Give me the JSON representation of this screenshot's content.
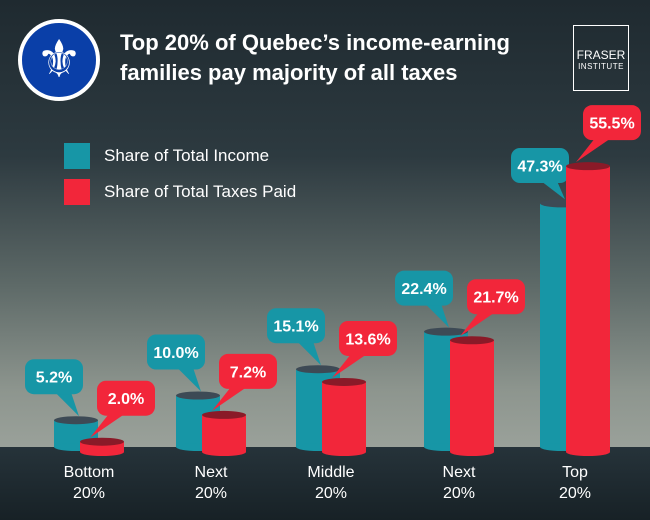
{
  "header": {
    "title": "Top 20% of Quebec’s income-earning families pay majority of all taxes",
    "logo_icon": "fleur-de-lis-icon",
    "brand_line1": "FRASER",
    "brand_line2": "INSTITUTE"
  },
  "colors": {
    "income": "#1796a6",
    "taxes": "#f2263a"
  },
  "chart_data": {
    "type": "bar",
    "title": "Top 20% of Quebec’s income-earning families pay majority of all taxes",
    "categories": [
      [
        "Bottom",
        "20%"
      ],
      [
        "Next",
        "20%"
      ],
      [
        "Middle",
        "20%"
      ],
      [
        "Next",
        "20%"
      ],
      [
        "Top",
        "20%"
      ]
    ],
    "series": [
      {
        "name": "Share of Total Income",
        "values": [
          5.2,
          10.0,
          15.1,
          22.4,
          47.3
        ],
        "labels": [
          "5.2%",
          "10.0%",
          "15.1%",
          "22.4%",
          "47.3%"
        ]
      },
      {
        "name": "Share of Total Taxes Paid",
        "values": [
          2.0,
          7.2,
          13.6,
          21.7,
          55.5
        ],
        "labels": [
          "2.0%",
          "7.2%",
          "13.6%",
          "21.7%",
          "55.5%"
        ]
      }
    ],
    "legend": "top-left",
    "grid": false,
    "unit": "%"
  }
}
